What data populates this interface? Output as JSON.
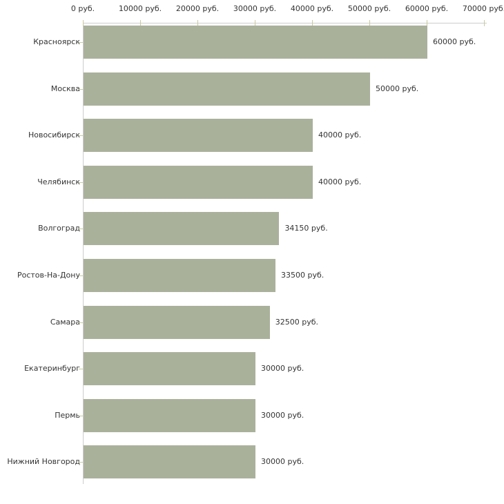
{
  "chart_data": {
    "type": "bar",
    "orientation": "horizontal",
    "title": "",
    "xlabel": "",
    "ylabel": "",
    "categories": [
      "Красноярск",
      "Москва",
      "Новосибирск",
      "Челябинск",
      "Волгоград",
      "Ростов-На-Дону",
      "Самара",
      "Екатеринбург",
      "Пермь",
      "Нижний Новгород"
    ],
    "values": [
      60000,
      50000,
      40000,
      40000,
      34150,
      33500,
      32500,
      30000,
      30000,
      30000
    ],
    "value_labels": [
      "60000 руб.",
      "50000 руб.",
      "40000 руб.",
      "40000 руб.",
      "34150 руб.",
      "33500 руб.",
      "32500 руб.",
      "30000 руб.",
      "30000 руб.",
      "30000 руб."
    ],
    "x_ticks": [
      0,
      10000,
      20000,
      30000,
      40000,
      50000,
      60000,
      70000
    ],
    "x_tick_labels": [
      "0 руб.",
      "10000 руб.",
      "20000 руб.",
      "30000 руб.",
      "40000 руб.",
      "50000 руб.",
      "60000 руб.",
      "70000 руб."
    ],
    "xlim": [
      0,
      70000
    ],
    "grid": false,
    "legend": false,
    "colors": {
      "bar": "#aab19b",
      "axis_line": "#cccccc",
      "tick_mark": "#c9c99f",
      "text": "#333333",
      "background": "#ffffff"
    }
  }
}
